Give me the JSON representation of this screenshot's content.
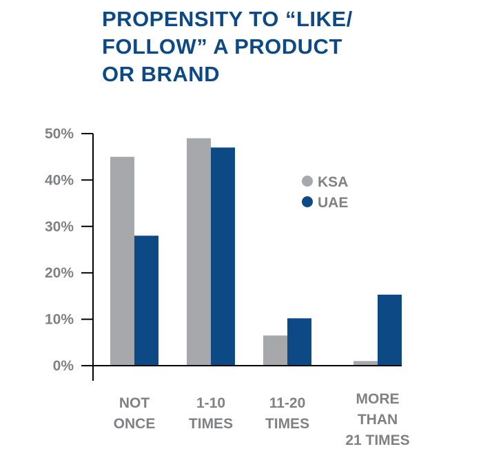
{
  "chart_data": {
    "type": "bar",
    "title_lines": [
      "PROPENSITY TO “LIKE/",
      "FOLLOW” A PRODUCT",
      "OR BRAND"
    ],
    "categories": [
      [
        "NOT",
        "ONCE"
      ],
      [
        "1-10",
        "TIMES"
      ],
      [
        "11-20",
        "TIMES"
      ],
      [
        "MORE",
        "THAN",
        "21 TIMES"
      ]
    ],
    "series": [
      {
        "name": "KSA",
        "color": "#a6a8ab",
        "values": [
          45,
          49,
          6.5,
          1
        ]
      },
      {
        "name": "UAE",
        "color": "#0d4a85",
        "values": [
          28,
          47,
          10.2,
          15.3
        ]
      }
    ],
    "ylim": [
      0,
      50
    ],
    "yticks": [
      0,
      10,
      20,
      30,
      40,
      50
    ],
    "ytick_labels": [
      "0%",
      "10%",
      "20%",
      "30%",
      "40%",
      "50%"
    ],
    "legend_position": "right-middle",
    "grid": false
  }
}
